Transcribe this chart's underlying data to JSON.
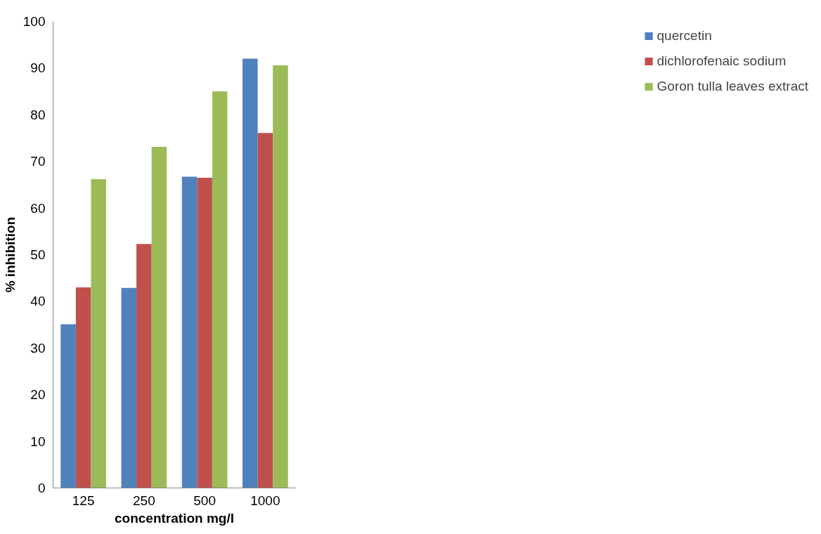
{
  "chart_data": {
    "type": "bar",
    "xlabel": "concentration mg/l",
    "ylabel": "% inhibition",
    "categories": [
      "125",
      "250",
      "500",
      "1000"
    ],
    "series": [
      {
        "name": "quercetin",
        "color": "#4f81bd",
        "values": [
          35.1,
          42.9,
          66.7,
          92.0
        ]
      },
      {
        "name": "dichlorofenaic sodium",
        "color": "#c0504d",
        "values": [
          43.0,
          52.3,
          66.5,
          76.1
        ]
      },
      {
        "name": "Goron tulla leaves extract",
        "color": "#9bbb59",
        "values": [
          66.2,
          73.1,
          85.0,
          90.6
        ]
      }
    ],
    "ylim": [
      0,
      100
    ],
    "yticks": [
      0,
      10,
      20,
      30,
      40,
      50,
      60,
      70,
      80,
      90,
      100
    ],
    "grid": false,
    "legend": "right"
  }
}
